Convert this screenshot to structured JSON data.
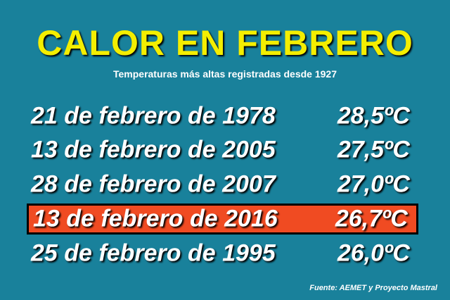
{
  "header": {
    "title": "CALOR EN FEBRERO",
    "subtitle": "Temperaturas más altas registradas desde 1927"
  },
  "table": {
    "rows": [
      [
        "21 de febrero de 1978",
        "28,5ºC"
      ],
      [
        "13 de febrero de 2005",
        "27,5ºC"
      ],
      [
        "28 de febrero de 2007",
        "27,0ºC"
      ],
      [
        "13 de febrero de 2016",
        "26,7ºC"
      ],
      [
        "25 de febrero de 1995",
        "26,0ºC"
      ]
    ]
  },
  "source": "Fuente: AEMET y Proyecto Mastral"
}
